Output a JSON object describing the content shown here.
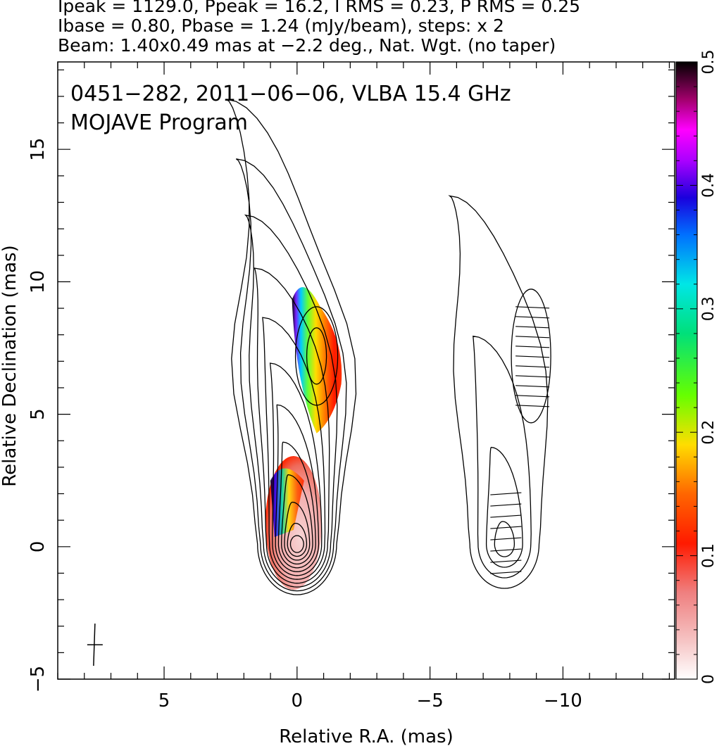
{
  "header": {
    "line1": "Ipeak = 1129.0, Ppeak = 16.2, I RMS = 0.23, P RMS = 0.25",
    "line2": "Ibase = 0.80, Pbase = 1.24 (mJy/beam), steps: x 2",
    "line3": "Beam: 1.40x0.49 mas at −2.2 deg., Nat. Wgt. (no taper)"
  },
  "annotations": {
    "source_line": "0451−282, 2011−06−06, VLBA 15.4 GHz",
    "program_line": "MOJAVE Program"
  },
  "chart_data": {
    "type": "contour",
    "xlabel": "Relative R.A. (mas)",
    "ylabel": "Relative Declination (mas)",
    "xlim": [
      9,
      -14.2
    ],
    "ylim": [
      -5,
      18.3
    ],
    "xticks": [
      {
        "value": 5,
        "label": "5"
      },
      {
        "value": 0,
        "label": "0"
      },
      {
        "value": -5,
        "label": "−5"
      },
      {
        "value": -10,
        "label": "−10"
      }
    ],
    "yticks": [
      {
        "value": -5,
        "label": "−5"
      },
      {
        "value": 0,
        "label": "0"
      },
      {
        "value": 5,
        "label": "5"
      },
      {
        "value": 10,
        "label": "10"
      },
      {
        "value": 15,
        "label": "15"
      }
    ],
    "colorbar": {
      "range": [
        0,
        0.5
      ],
      "ticks": [
        {
          "value": 0,
          "label": "0"
        },
        {
          "value": 0.1,
          "label": "0.1"
        },
        {
          "value": 0.2,
          "label": "0.2"
        },
        {
          "value": 0.3,
          "label": "0.3"
        },
        {
          "value": 0.4,
          "label": "0.4"
        },
        {
          "value": 0.5,
          "label": "0.5"
        }
      ]
    },
    "panels": [
      {
        "name": "Stokes I contours with fractional polarization",
        "x_offset": 0
      },
      {
        "name": "Polarized intensity contours with EVPA ticks",
        "x_offset": -7.8
      }
    ],
    "core": {
      "x": 0,
      "y": 0.1
    },
    "knot": {
      "x": -1.0,
      "y": 7.2
    },
    "beam": {
      "x": 7.6,
      "y": -3.7,
      "major_mas": 1.4,
      "minor_mas": 0.49,
      "pa_deg": -2.2
    }
  }
}
